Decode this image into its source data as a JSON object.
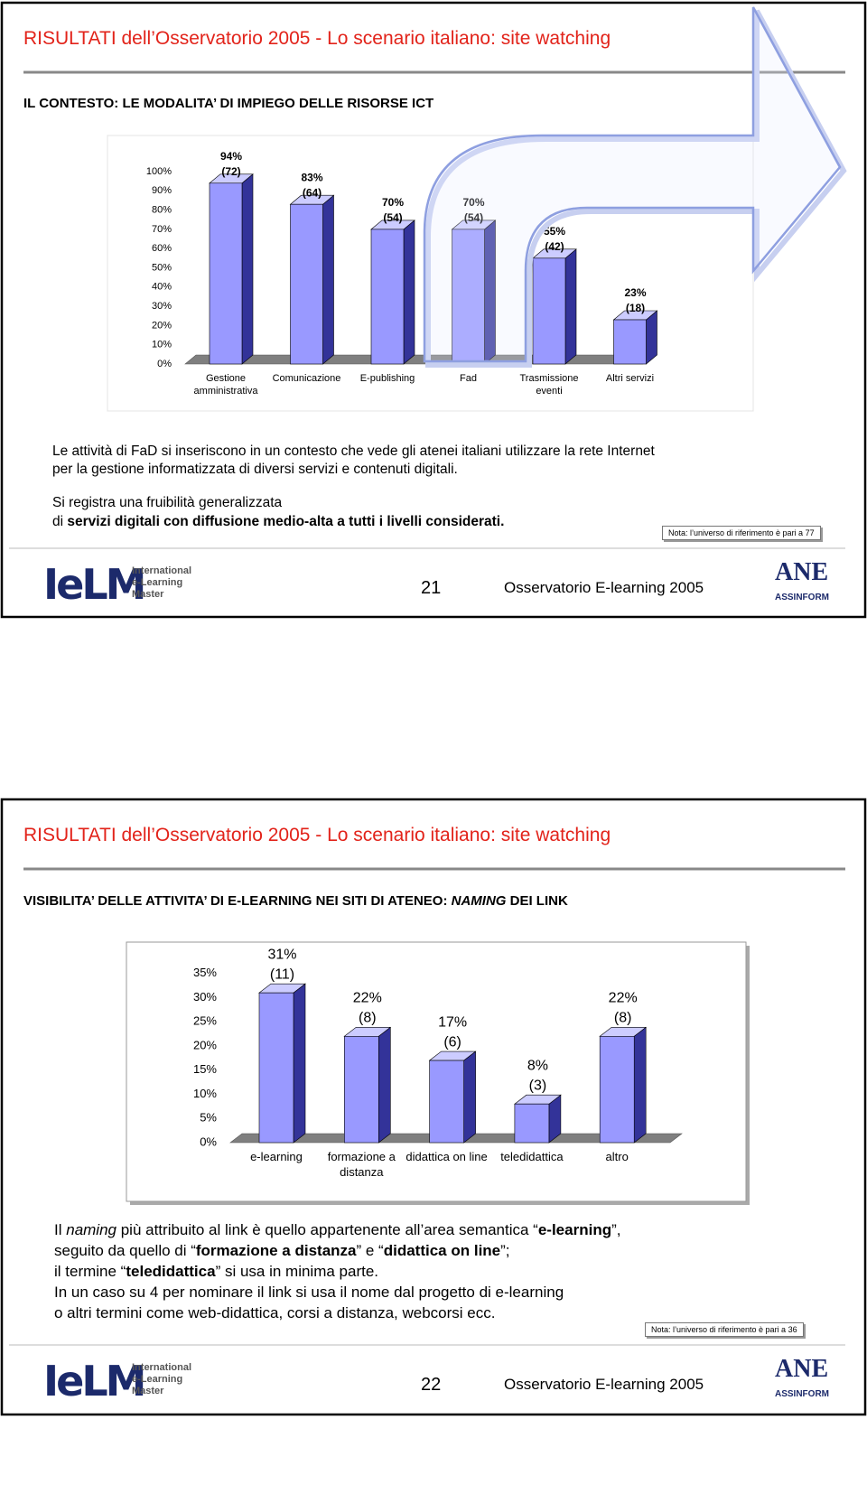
{
  "slides": [
    {
      "title": "RISULTATI dell’Osservatorio 2005 - Lo scenario italiano: site watching",
      "subtitle": [
        "IL CONTESTO: LE MODALITA’ DI IMPIEGO DELLE RISORSE ICT"
      ],
      "text": [
        [
          "Le attività di FaD si inseriscono in un contesto che vede gli atenei italiani utilizzare la rete Internet"
        ],
        [
          "per la gestione informatizzata di diversi servizi e contenuti digitali."
        ],
        [
          "Si registra una fruibilità generalizzata"
        ],
        [
          "di ",
          "servizi digitali con diffusione medio-alta a tutti i livelli considerati."
        ]
      ],
      "note": "Nota: l’universo di riferimento è pari a 77",
      "page": 21,
      "footer": "Osservatorio E-learning 2005"
    },
    {
      "title": "RISULTATI dell’Osservatorio 2005 - Lo scenario italiano: site watching",
      "subtitle": [
        "VISIBILITA’ DELLE ATTIVITA’ DI E-LEARNING NEI SITI DI ATENEO: ",
        "NAMING",
        " DEI LINK"
      ],
      "text": [
        [
          "Il ",
          "naming",
          " più attribuito al link è quello appartenente all’area semantica “",
          "e-learning",
          "”,"
        ],
        [
          "seguito da quello di “",
          "formazione a distanza",
          "” e “",
          "didattica on line",
          "”;"
        ],
        [
          "il termine “",
          "teledidattica",
          "” si usa in minima parte."
        ],
        [
          "In un caso su 4 per nominare il link si usa il nome dal progetto di e-learning"
        ],
        [
          "o altri termini come web-didattica, corsi a distanza, webcorsi ecc."
        ]
      ],
      "note": "Nota: l’universo di riferimento è pari a 36",
      "page": 22,
      "footer": "Osservatorio E-learning 2005"
    }
  ],
  "logos": {
    "ielm": "IeLM",
    "ielm_lines": [
      "International",
      "e-Learning",
      "Master"
    ],
    "ane": "ANE",
    "assinform": "ASSINFORM"
  },
  "chart_data": [
    {
      "type": "bar3d",
      "categories": [
        "Gestione amministrativa",
        "Comunicazione",
        "E-publishing",
        "Fad",
        "Trasmissione eventi",
        "Altri servizi"
      ],
      "values": [
        94,
        83,
        70,
        70,
        55,
        23
      ],
      "value_labels": [
        "94%",
        "83%",
        "70%",
        "70%",
        "55%",
        "23%"
      ],
      "count_labels": [
        "(72)",
        "(64)",
        "(54)",
        "(54)",
        "(42)",
        "(18)"
      ],
      "color": "#9999ff",
      "ylim": [
        0,
        100
      ],
      "yticks": [
        {
          "value": 0,
          "label": "0%"
        },
        {
          "value": 10,
          "label": "10%"
        },
        {
          "value": 20,
          "label": "20%"
        },
        {
          "value": 30,
          "label": "30%"
        },
        {
          "value": 40,
          "label": "40%"
        },
        {
          "value": 50,
          "label": "50%"
        },
        {
          "value": 60,
          "label": "60%"
        },
        {
          "value": 70,
          "label": "70%"
        },
        {
          "value": 80,
          "label": "80%"
        },
        {
          "value": 90,
          "label": "90%"
        },
        {
          "value": 100,
          "label": "100%"
        }
      ]
    },
    {
      "type": "bar3d",
      "categories": [
        "e-learning",
        "formazione a distanza",
        "didattica on line",
        "teledidattica",
        "altro"
      ],
      "values": [
        31,
        22,
        17,
        8,
        22
      ],
      "value_labels": [
        "31%",
        "22%",
        "17%",
        "8%",
        "22%"
      ],
      "count_labels": [
        "(11)",
        "(8)",
        "(6)",
        "(3)",
        "(8)"
      ],
      "color": "#9999ff",
      "ylim": [
        0,
        35
      ],
      "yticks": [
        {
          "value": 0,
          "label": "0%"
        },
        {
          "value": 5,
          "label": "5%"
        },
        {
          "value": 10,
          "label": "10%"
        },
        {
          "value": 15,
          "label": "15%"
        },
        {
          "value": 20,
          "label": "20%"
        },
        {
          "value": 25,
          "label": "25%"
        },
        {
          "value": 30,
          "label": "30%"
        },
        {
          "value": 35,
          "label": "35%"
        }
      ]
    }
  ]
}
